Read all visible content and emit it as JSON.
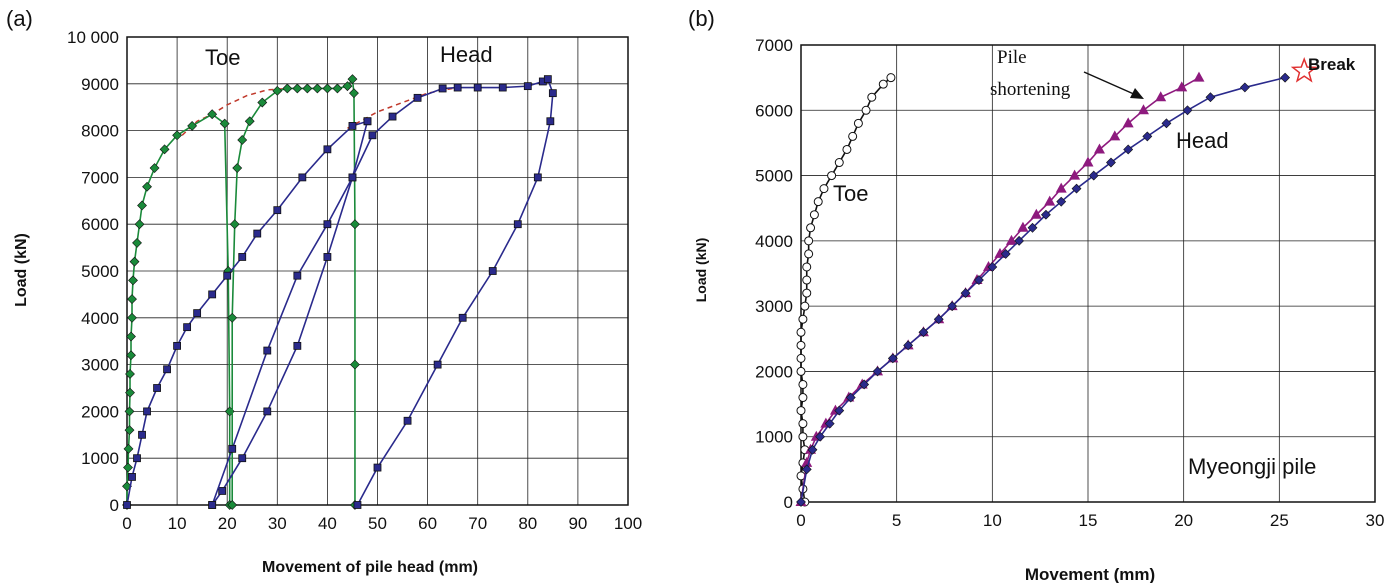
{
  "chart_data": [
    {
      "panel": "(a)",
      "type": "line",
      "xlabel": "Movement of pile head  (mm)",
      "ylabel": "Load  (kN)",
      "xlim": [
        0,
        100
      ],
      "ylim": [
        0,
        10000
      ],
      "x_ticks": [
        "0",
        "10",
        "20",
        "30",
        "40",
        "50",
        "60",
        "70",
        "80",
        "90",
        "100"
      ],
      "y_ticks": [
        "0",
        "1000",
        "2000",
        "3000",
        "4000",
        "5000",
        "6000",
        "7000",
        "8000",
        "9000",
        "10 000"
      ],
      "grid": true,
      "annotations": [
        "Toe",
        "Head"
      ],
      "series": [
        {
          "color": "#1a8a3a",
          "marker": "diamond",
          "cycles": [
            [
              [
                0,
                0
              ],
              [
                0,
                400
              ],
              [
                0.2,
                800
              ],
              [
                0.3,
                1200
              ],
              [
                0.5,
                1600
              ],
              [
                0.5,
                2000
              ],
              [
                0.6,
                2400
              ],
              [
                0.6,
                2800
              ],
              [
                0.8,
                3200
              ],
              [
                0.8,
                3600
              ],
              [
                1,
                4000
              ],
              [
                1,
                4400
              ],
              [
                1.2,
                4800
              ],
              [
                1.5,
                5200
              ],
              [
                2,
                5600
              ],
              [
                2.5,
                6000
              ],
              [
                3,
                6400
              ],
              [
                4,
                6800
              ],
              [
                5.5,
                7200
              ],
              [
                7.5,
                7600
              ],
              [
                10,
                7900
              ],
              [
                13,
                8100
              ],
              [
                17,
                8350
              ],
              [
                19.5,
                8150
              ],
              [
                20.2,
                5000
              ],
              [
                20.5,
                2000
              ],
              [
                20.5,
                0
              ]
            ],
            [
              [
                21,
                0
              ],
              [
                21,
                4000
              ],
              [
                21.5,
                6000
              ],
              [
                22,
                7200
              ],
              [
                23,
                7800
              ],
              [
                24.5,
                8200
              ],
              [
                27,
                8600
              ],
              [
                30,
                8850
              ],
              [
                32,
                8900
              ],
              [
                34,
                8900
              ],
              [
                36,
                8900
              ],
              [
                38,
                8900
              ],
              [
                40,
                8900
              ],
              [
                42,
                8900
              ],
              [
                44,
                8950
              ],
              [
                45,
                9100
              ],
              [
                45.3,
                8800
              ],
              [
                45.5,
                6000
              ],
              [
                45.5,
                3000
              ],
              [
                45.5,
                0
              ]
            ]
          ]
        },
        {
          "color": "#2a2a8c",
          "marker": "square",
          "cycles": [
            [
              [
                0,
                0
              ],
              [
                1,
                600
              ],
              [
                2,
                1000
              ],
              [
                3,
                1500
              ],
              [
                4,
                2000
              ],
              [
                6,
                2500
              ],
              [
                8,
                2900
              ],
              [
                10,
                3400
              ],
              [
                12,
                3800
              ],
              [
                14,
                4100
              ],
              [
                17,
                4500
              ],
              [
                20,
                4900
              ],
              [
                23,
                5300
              ],
              [
                26,
                5800
              ],
              [
                30,
                6300
              ],
              [
                35,
                7000
              ],
              [
                40,
                7600
              ],
              [
                45,
                8100
              ],
              [
                48,
                8200
              ]
            ],
            [
              [
                48,
                8200
              ],
              [
                45,
                7000
              ],
              [
                40,
                5300
              ],
              [
                34,
                3400
              ],
              [
                28,
                2000
              ],
              [
                23,
                1000
              ],
              [
                19,
                300
              ],
              [
                17,
                0
              ]
            ],
            [
              [
                17,
                0
              ],
              [
                21,
                1200
              ],
              [
                28,
                3300
              ],
              [
                34,
                4900
              ],
              [
                40,
                6000
              ],
              [
                45,
                7000
              ],
              [
                49,
                7900
              ],
              [
                53,
                8300
              ],
              [
                58,
                8700
              ],
              [
                63,
                8900
              ],
              [
                66,
                8920
              ],
              [
                70,
                8920
              ],
              [
                75,
                8920
              ],
              [
                80,
                8950
              ],
              [
                83,
                9050
              ],
              [
                84,
                9100
              ],
              [
                85,
                8800
              ],
              [
                84.5,
                8200
              ],
              [
                82,
                7000
              ],
              [
                78,
                6000
              ],
              [
                73,
                5000
              ],
              [
                67,
                4000
              ],
              [
                62,
                3000
              ],
              [
                56,
                1800
              ],
              [
                50,
                800
              ],
              [
                46,
                0
              ]
            ]
          ]
        }
      ],
      "dashed_envelope": {
        "color": "#c0392b",
        "segments": [
          [
            [
              11,
              7900
            ],
            [
              14,
              8200
            ],
            [
              17,
              8350
            ],
            [
              20,
              8550
            ],
            [
              24,
              8750
            ],
            [
              28,
              8870
            ],
            [
              32,
              8900
            ]
          ],
          [
            [
              44,
              8050
            ],
            [
              50,
              8400
            ],
            [
              55,
              8600
            ],
            [
              60,
              8800
            ],
            [
              65,
              8900
            ]
          ]
        ]
      }
    },
    {
      "panel": "(b)",
      "type": "line",
      "xlabel": "Movement (mm)",
      "ylabel": "Load (kN)",
      "xlim": [
        0,
        30
      ],
      "ylim": [
        0,
        7000
      ],
      "x_ticks": [
        "0",
        "5",
        "10",
        "15",
        "20",
        "25",
        "30"
      ],
      "y_ticks": [
        "0",
        "1000",
        "2000",
        "3000",
        "4000",
        "5000",
        "6000",
        "7000"
      ],
      "grid": true,
      "annotations": [
        "Toe",
        "Head",
        "Pile",
        "shortening",
        "Break",
        "Myeongji pile"
      ],
      "series": [
        {
          "name": "Toe",
          "color": "#111111",
          "marker": "circle-open",
          "points": [
            [
              0.2,
              0
            ],
            [
              0.1,
              200
            ],
            [
              0,
              400
            ],
            [
              0.1,
              600
            ],
            [
              0.2,
              800
            ],
            [
              0.1,
              1000
            ],
            [
              0.1,
              1200
            ],
            [
              0,
              1400
            ],
            [
              0.1,
              1600
            ],
            [
              0.1,
              1800
            ],
            [
              0,
              2000
            ],
            [
              0,
              2200
            ],
            [
              0,
              2400
            ],
            [
              0,
              2600
            ],
            [
              0.1,
              2800
            ],
            [
              0.2,
              3000
            ],
            [
              0.3,
              3200
            ],
            [
              0.3,
              3400
            ],
            [
              0.3,
              3600
            ],
            [
              0.4,
              3800
            ],
            [
              0.4,
              4000
            ],
            [
              0.5,
              4200
            ],
            [
              0.7,
              4400
            ],
            [
              0.9,
              4600
            ],
            [
              1.2,
              4800
            ],
            [
              1.6,
              5000
            ],
            [
              2,
              5200
            ],
            [
              2.4,
              5400
            ],
            [
              2.7,
              5600
            ],
            [
              3,
              5800
            ],
            [
              3.4,
              6000
            ],
            [
              3.7,
              6200
            ],
            [
              4.3,
              6400
            ],
            [
              4.7,
              6500
            ]
          ]
        },
        {
          "name": "Pile shortening",
          "color": "#8e1a7e",
          "marker": "triangle",
          "points": [
            [
              0,
              0
            ],
            [
              0.3,
              600
            ],
            [
              0.5,
              800
            ],
            [
              0.8,
              1000
            ],
            [
              1.3,
              1200
            ],
            [
              1.8,
              1400
            ],
            [
              2.5,
              1600
            ],
            [
              3.2,
              1800
            ],
            [
              4,
              2000
            ],
            [
              4.8,
              2200
            ],
            [
              5.6,
              2400
            ],
            [
              6.4,
              2600
            ],
            [
              7.2,
              2800
            ],
            [
              7.9,
              3000
            ],
            [
              8.6,
              3200
            ],
            [
              9.2,
              3400
            ],
            [
              9.8,
              3600
            ],
            [
              10.4,
              3800
            ],
            [
              11,
              4000
            ],
            [
              11.6,
              4200
            ],
            [
              12.3,
              4400
            ],
            [
              13,
              4600
            ],
            [
              13.6,
              4800
            ],
            [
              14.3,
              5000
            ],
            [
              15,
              5200
            ],
            [
              15.6,
              5400
            ],
            [
              16.4,
              5600
            ],
            [
              17.1,
              5800
            ],
            [
              17.9,
              6000
            ],
            [
              18.8,
              6200
            ],
            [
              19.9,
              6350
            ],
            [
              20.8,
              6500
            ]
          ]
        },
        {
          "name": "Head",
          "color": "#2a2a8c",
          "marker": "diamond",
          "points": [
            [
              0,
              0
            ],
            [
              0.3,
              500
            ],
            [
              0.6,
              800
            ],
            [
              1,
              1000
            ],
            [
              1.5,
              1200
            ],
            [
              2,
              1400
            ],
            [
              2.6,
              1600
            ],
            [
              3.3,
              1800
            ],
            [
              4,
              2000
            ],
            [
              4.8,
              2200
            ],
            [
              5.6,
              2400
            ],
            [
              6.4,
              2600
            ],
            [
              7.2,
              2800
            ],
            [
              7.9,
              3000
            ],
            [
              8.6,
              3200
            ],
            [
              9.3,
              3400
            ],
            [
              10,
              3600
            ],
            [
              10.7,
              3800
            ],
            [
              11.4,
              4000
            ],
            [
              12.1,
              4200
            ],
            [
              12.8,
              4400
            ],
            [
              13.6,
              4600
            ],
            [
              14.4,
              4800
            ],
            [
              15.3,
              5000
            ],
            [
              16.2,
              5200
            ],
            [
              17.1,
              5400
            ],
            [
              18.1,
              5600
            ],
            [
              19.1,
              5800
            ],
            [
              20.2,
              6000
            ],
            [
              21.4,
              6200
            ],
            [
              23.2,
              6350
            ],
            [
              25.3,
              6500
            ]
          ]
        }
      ],
      "break_point": [
        26.3,
        6600
      ]
    }
  ]
}
